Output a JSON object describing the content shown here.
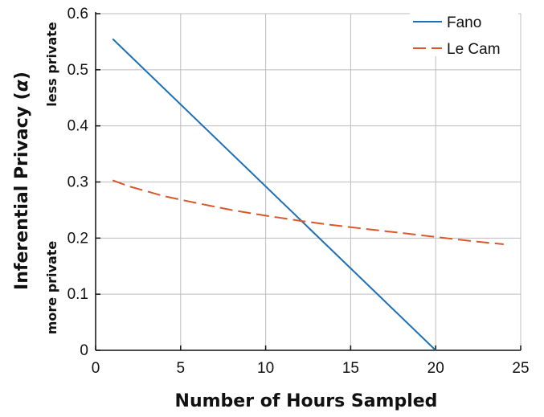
{
  "chart_data": {
    "type": "line",
    "xlabel": "Number of Hours Sampled",
    "ylabel_main": "Inferential Privacy (",
    "ylabel_symbol": "α",
    "ylabel_end": ")",
    "ylabel_top_note": "less private",
    "ylabel_bottom_note": "more private",
    "xlim": [
      0,
      25
    ],
    "ylim": [
      0,
      0.6
    ],
    "xticks": [
      0,
      5,
      10,
      15,
      20,
      25
    ],
    "xtick_labels": [
      "0",
      "5",
      "10",
      "15",
      "20",
      "25"
    ],
    "yticks": [
      0,
      0.1,
      0.2,
      0.3,
      0.4,
      0.5,
      0.6
    ],
    "ytick_labels": [
      "0",
      "0.1",
      "0.2",
      "0.3",
      "0.4",
      "0.5",
      "0.6"
    ],
    "grid": true,
    "legend_position": "top-right",
    "series": [
      {
        "name": "Fano",
        "color": "#1f6fb5",
        "dash": "solid",
        "x": [
          1,
          20
        ],
        "y": [
          0.555,
          0.0
        ]
      },
      {
        "name": "Le Cam",
        "color": "#d9572b",
        "dash": "dashed",
        "x": [
          1,
          2,
          4,
          6,
          8,
          10,
          12,
          14,
          16,
          18,
          20,
          22,
          24
        ],
        "y": [
          0.303,
          0.292,
          0.275,
          0.262,
          0.25,
          0.24,
          0.231,
          0.223,
          0.216,
          0.209,
          0.202,
          0.195,
          0.189
        ]
      }
    ]
  }
}
